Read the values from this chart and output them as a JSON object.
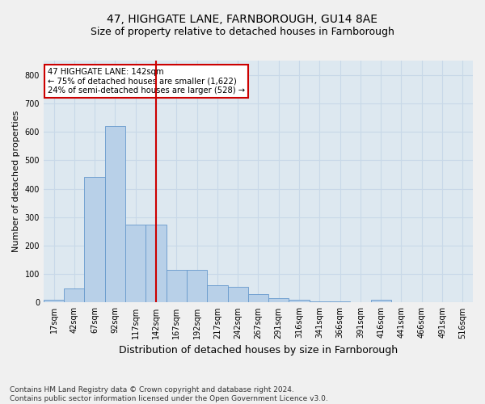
{
  "title_line1": "47, HIGHGATE LANE, FARNBOROUGH, GU14 8AE",
  "title_line2": "Size of property relative to detached houses in Farnborough",
  "xlabel": "Distribution of detached houses by size in Farnborough",
  "ylabel": "Number of detached properties",
  "footnote": "Contains HM Land Registry data © Crown copyright and database right 2024.\nContains public sector information licensed under the Open Government Licence v3.0.",
  "bar_labels": [
    "17sqm",
    "42sqm",
    "67sqm",
    "92sqm",
    "117sqm",
    "142sqm",
    "167sqm",
    "192sqm",
    "217sqm",
    "242sqm",
    "267sqm",
    "291sqm",
    "316sqm",
    "341sqm",
    "366sqm",
    "391sqm",
    "416sqm",
    "441sqm",
    "466sqm",
    "491sqm",
    "516sqm"
  ],
  "bar_heights": [
    10,
    50,
    440,
    620,
    275,
    275,
    115,
    115,
    60,
    55,
    30,
    15,
    10,
    5,
    5,
    0,
    10,
    0,
    0,
    0,
    0
  ],
  "bar_color": "#b8d0e8",
  "bar_edge_color": "#6699cc",
  "vline_x": 5,
  "vline_color": "#cc0000",
  "annotation_text": "47 HIGHGATE LANE: 142sqm\n← 75% of detached houses are smaller (1,622)\n24% of semi-detached houses are larger (528) →",
  "annotation_box_color": "#ffffff",
  "annotation_box_edge": "#cc0000",
  "ylim": [
    0,
    850
  ],
  "yticks": [
    0,
    100,
    200,
    300,
    400,
    500,
    600,
    700,
    800
  ],
  "grid_color": "#c8d8e8",
  "bg_color": "#dde8f0",
  "fig_bg_color": "#f0f0f0",
  "title1_fontsize": 10,
  "title2_fontsize": 9,
  "ylabel_fontsize": 8,
  "xlabel_fontsize": 9,
  "footnote_fontsize": 6.5,
  "tick_fontsize": 7
}
